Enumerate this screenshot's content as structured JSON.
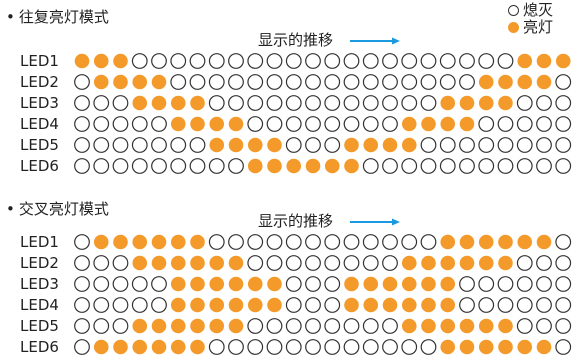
{
  "colors": {
    "on": "#F39A2B",
    "off_stroke": "#333333",
    "arrow": "#1A9AE0"
  },
  "legend": {
    "off_label": "熄灭",
    "on_label": "亮灯"
  },
  "sections": [
    {
      "title": "往复亮灯模式",
      "progress_label": "显示的推移",
      "rows": [
        {
          "label": "LED1",
          "states": [
            1,
            1,
            1,
            0,
            0,
            0,
            0,
            0,
            0,
            0,
            0,
            0,
            0,
            0,
            0,
            0,
            0,
            0,
            0,
            0,
            0,
            0,
            0,
            1,
            1,
            1
          ]
        },
        {
          "label": "LED2",
          "states": [
            0,
            1,
            1,
            1,
            1,
            0,
            0,
            0,
            0,
            0,
            0,
            0,
            0,
            0,
            0,
            0,
            0,
            0,
            0,
            0,
            0,
            1,
            1,
            1,
            1,
            0
          ]
        },
        {
          "label": "LED3",
          "states": [
            0,
            0,
            0,
            1,
            1,
            1,
            1,
            0,
            0,
            0,
            0,
            0,
            0,
            0,
            0,
            0,
            0,
            0,
            0,
            1,
            1,
            1,
            1,
            0,
            0,
            0
          ]
        },
        {
          "label": "LED4",
          "states": [
            0,
            0,
            0,
            0,
            0,
            1,
            1,
            1,
            1,
            0,
            0,
            0,
            0,
            0,
            0,
            0,
            0,
            1,
            1,
            1,
            1,
            0,
            0,
            0,
            0,
            0
          ]
        },
        {
          "label": "LED5",
          "states": [
            0,
            0,
            0,
            0,
            0,
            0,
            0,
            1,
            1,
            1,
            1,
            0,
            0,
            0,
            1,
            1,
            1,
            1,
            0,
            0,
            0,
            0,
            0,
            0,
            0,
            0
          ]
        },
        {
          "label": "LED6",
          "states": [
            0,
            0,
            0,
            0,
            0,
            0,
            0,
            0,
            0,
            1,
            1,
            1,
            1,
            1,
            1,
            0,
            0,
            0,
            0,
            0,
            0,
            0,
            0,
            0,
            0,
            0
          ]
        }
      ]
    },
    {
      "title": "交叉亮灯模式",
      "progress_label": "显示的推移",
      "rows": [
        {
          "label": "LED1",
          "states": [
            0,
            1,
            1,
            1,
            1,
            1,
            1,
            0,
            0,
            0,
            0,
            0,
            0,
            0,
            0,
            0,
            0,
            0,
            0,
            1,
            1,
            1,
            1,
            1,
            1,
            0
          ]
        },
        {
          "label": "LED2",
          "states": [
            0,
            0,
            0,
            1,
            1,
            1,
            1,
            1,
            1,
            0,
            0,
            0,
            0,
            0,
            0,
            0,
            0,
            1,
            1,
            1,
            1,
            1,
            1,
            0,
            0,
            0
          ]
        },
        {
          "label": "LED3",
          "states": [
            0,
            0,
            0,
            0,
            0,
            1,
            1,
            1,
            1,
            1,
            1,
            0,
            0,
            0,
            1,
            1,
            1,
            1,
            1,
            1,
            0,
            0,
            0,
            0,
            0,
            0
          ]
        },
        {
          "label": "LED4",
          "states": [
            0,
            0,
            0,
            0,
            0,
            1,
            1,
            1,
            1,
            1,
            1,
            0,
            0,
            0,
            1,
            1,
            1,
            1,
            1,
            1,
            0,
            0,
            0,
            0,
            0,
            0
          ]
        },
        {
          "label": "LED5",
          "states": [
            0,
            0,
            0,
            1,
            1,
            1,
            1,
            1,
            1,
            0,
            0,
            0,
            0,
            0,
            0,
            0,
            0,
            1,
            1,
            1,
            1,
            1,
            1,
            0,
            0,
            0
          ]
        },
        {
          "label": "LED6",
          "states": [
            0,
            1,
            1,
            1,
            1,
            1,
            1,
            0,
            0,
            0,
            0,
            0,
            0,
            0,
            0,
            0,
            0,
            0,
            0,
            1,
            1,
            1,
            1,
            1,
            1,
            0
          ]
        }
      ]
    }
  ]
}
